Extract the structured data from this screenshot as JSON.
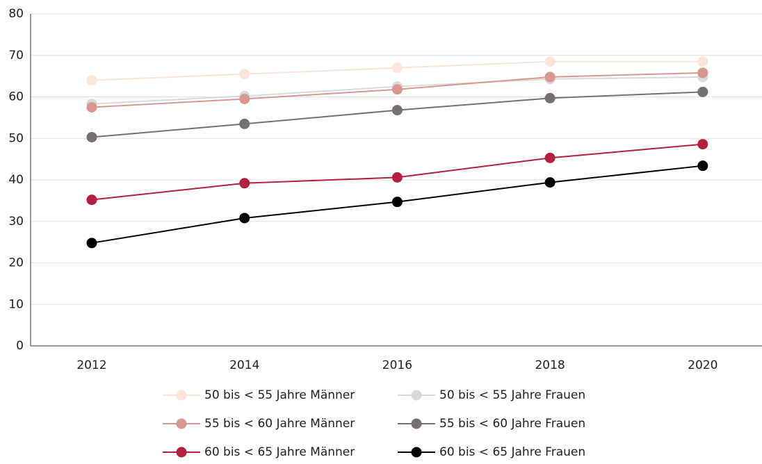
{
  "chart_data": {
    "type": "line",
    "categories": [
      "2012",
      "2014",
      "2016",
      "2018",
      "2020"
    ],
    "series": [
      {
        "name": "50 bis < 55 Jahre Männer",
        "color": "#fbe4da",
        "values": [
          64,
          65.5,
          67,
          68.5,
          68.5
        ]
      },
      {
        "name": "50 bis < 55 Jahre Frauen",
        "color": "#d9d9d9",
        "values": [
          58.3,
          60.2,
          62.5,
          64.3,
          64.8
        ]
      },
      {
        "name": "55 bis < 60 Jahre Männer",
        "color": "#da9690",
        "values": [
          57.5,
          59.5,
          61.8,
          64.8,
          65.8
        ]
      },
      {
        "name": "55 bis < 60 Jahre Frauen",
        "color": "#767171",
        "values": [
          50.3,
          53.5,
          56.8,
          59.7,
          61.2
        ]
      },
      {
        "name": "60 bis < 65 Jahre Männer",
        "color": "#b5203f",
        "values": [
          35.2,
          39.2,
          40.6,
          45.3,
          48.6
        ]
      },
      {
        "name": "60 bis < 65 Jahre Frauen",
        "color": "#000000",
        "values": [
          24.8,
          30.8,
          34.7,
          39.4,
          43.4
        ]
      }
    ],
    "ylim": [
      0,
      80
    ],
    "yticks": [
      0,
      10,
      20,
      30,
      40,
      50,
      60,
      70,
      80
    ],
    "grid": true,
    "legend": "bottom"
  }
}
